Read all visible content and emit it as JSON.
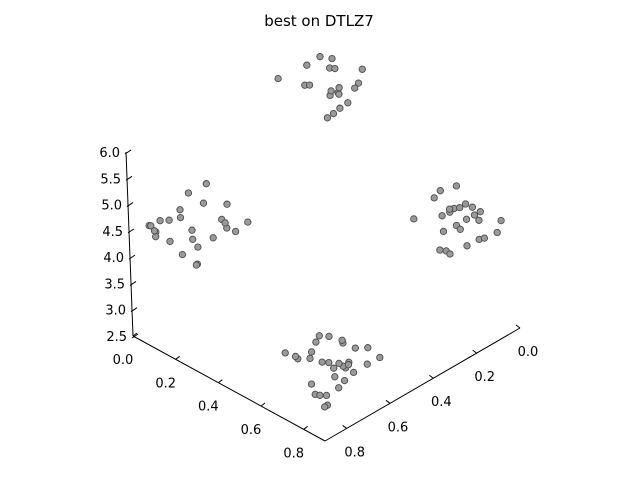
{
  "chart_data": {
    "type": "scatter",
    "projection": "3d",
    "title": "best on DTLZ7",
    "xlabel": "",
    "ylabel": "",
    "zlabel": "",
    "x_ticks": [
      "0.0",
      "0.2",
      "0.4",
      "0.6",
      "0.8"
    ],
    "y_ticks": [
      "0.0",
      "0.2",
      "0.4",
      "0.6",
      "0.8"
    ],
    "z_ticks": [
      "2.5",
      "3.0",
      "3.5",
      "4.0",
      "4.5",
      "5.0",
      "5.5",
      "6.0"
    ],
    "xlim": [
      0.0,
      0.9
    ],
    "ylim": [
      0.0,
      0.9
    ],
    "zlim": [
      2.45,
      6.15
    ],
    "grid": false,
    "legend": "none",
    "marker_color": "#9a9a9a",
    "marker_edge_color": "#4d4d4d",
    "clusters": [
      {
        "x_range": [
          0.0,
          0.25
        ],
        "y_range": [
          0.0,
          0.25
        ],
        "z_range": [
          5.5,
          6.05
        ],
        "points": 20
      },
      {
        "x_range": [
          0.58,
          0.85
        ],
        "y_range": [
          0.0,
          0.25
        ],
        "z_range": [
          4.1,
          4.7
        ],
        "points": 26
      },
      {
        "x_range": [
          0.0,
          0.25
        ],
        "y_range": [
          0.58,
          0.85
        ],
        "z_range": [
          4.1,
          4.7
        ],
        "points": 26
      },
      {
        "x_range": [
          0.58,
          0.85
        ],
        "y_range": [
          0.58,
          0.85
        ],
        "z_range": [
          2.9,
          3.5
        ],
        "points": 32
      }
    ]
  }
}
